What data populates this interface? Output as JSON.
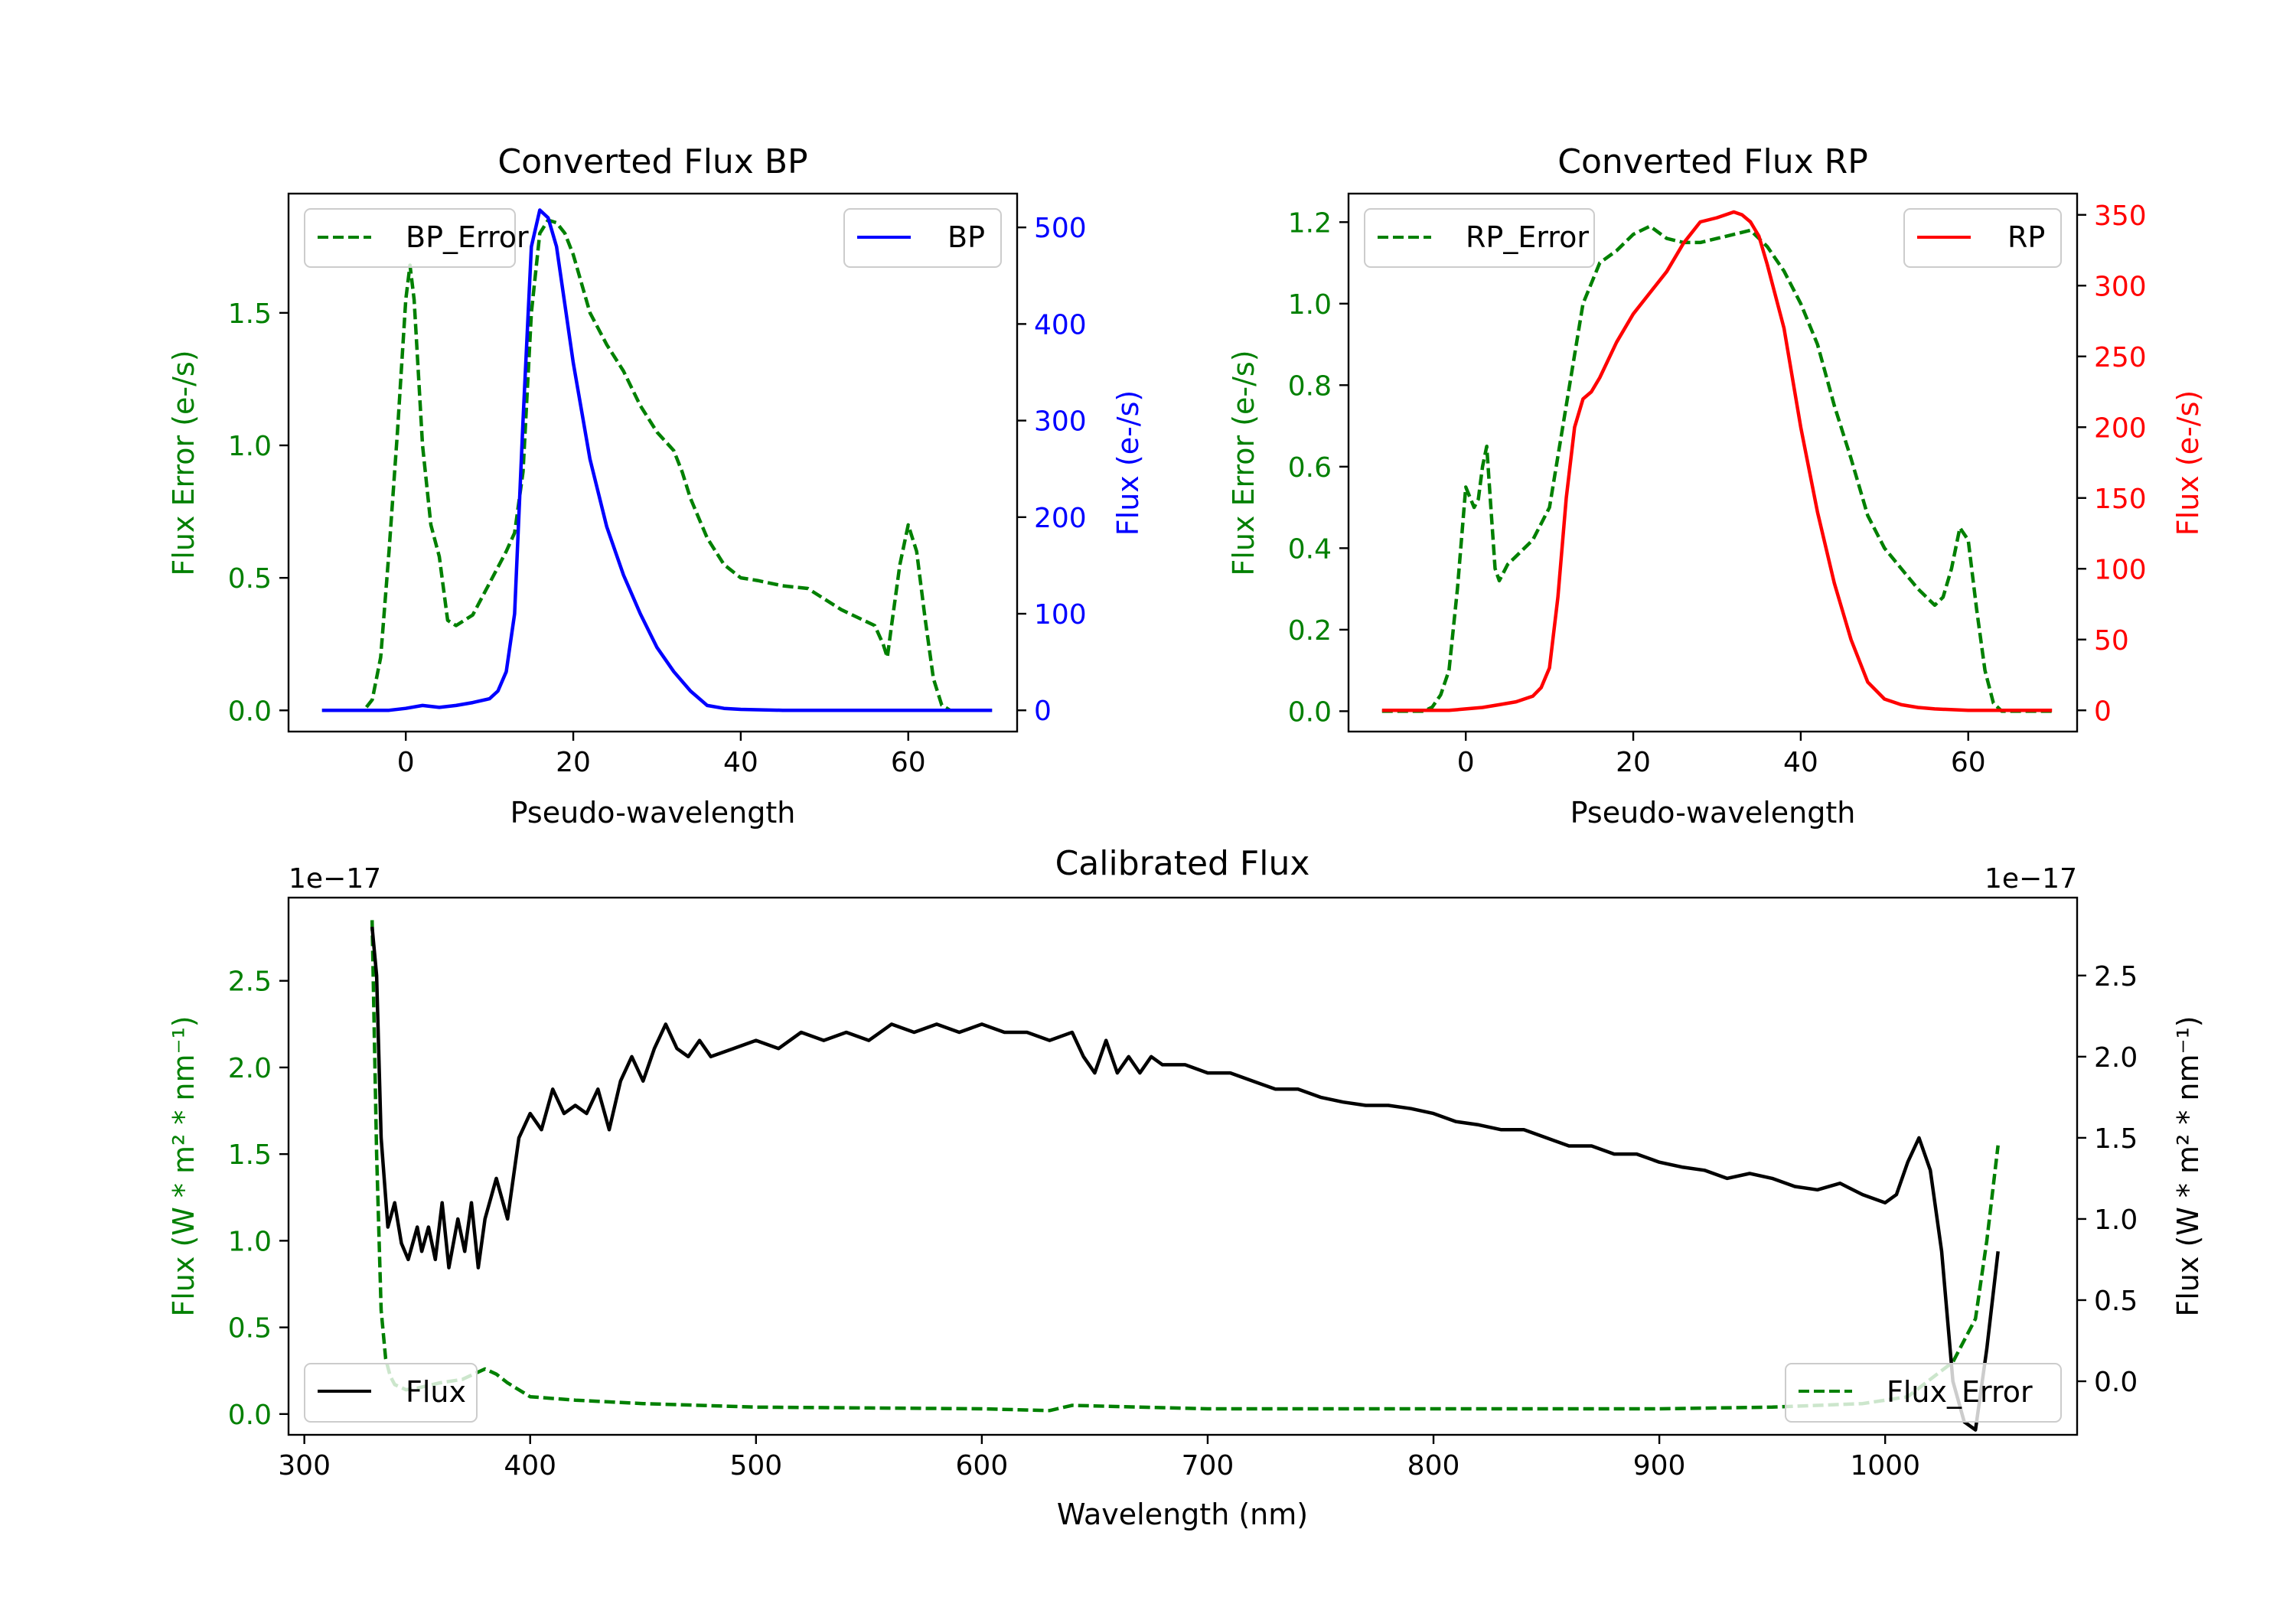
{
  "colors": {
    "green": "#008000",
    "blue": "#0000ff",
    "red": "#ff0000",
    "black": "#000000"
  },
  "chart_data": [
    {
      "id": "bp",
      "type": "line",
      "title": "Converted Flux BP",
      "xlabel": "Pseudo-wavelength",
      "xlim": [
        -14,
        73
      ],
      "xticks": [
        0,
        20,
        40,
        60
      ],
      "ylabel_left": "Flux Error (e-/s)",
      "ylim_left": [
        -0.08,
        1.95
      ],
      "yticks_left": [
        "0.0",
        "0.5",
        "1.0",
        "1.5"
      ],
      "ylabel_right": "Flux (e-/s)",
      "ylim_right": [
        -22,
        535
      ],
      "yticks_right": [
        "0",
        "100",
        "200",
        "300",
        "400",
        "500"
      ],
      "series": [
        {
          "name": "BP_Error",
          "axis": "left",
          "color": "#008000",
          "dashed": true,
          "legend": "BP_Error",
          "legend_loc": "upper left",
          "x": [
            -10,
            -5,
            -4,
            -3,
            -2,
            -1,
            0,
            0.5,
            1,
            2,
            3,
            4,
            5,
            6,
            7,
            8,
            10,
            12,
            13,
            14,
            15,
            16,
            17,
            18,
            19,
            20,
            22,
            24,
            26,
            28,
            30,
            32,
            33,
            34,
            36,
            38,
            40,
            42,
            45,
            48,
            50,
            52,
            54,
            56,
            57,
            57.5,
            58,
            59,
            60,
            61,
            62,
            63,
            64,
            65,
            66,
            70
          ],
          "y": [
            0,
            0,
            0.04,
            0.2,
            0.6,
            1.05,
            1.55,
            1.68,
            1.55,
            1.0,
            0.7,
            0.58,
            0.34,
            0.32,
            0.34,
            0.36,
            0.48,
            0.6,
            0.67,
            0.9,
            1.5,
            1.8,
            1.85,
            1.84,
            1.8,
            1.72,
            1.5,
            1.38,
            1.28,
            1.15,
            1.05,
            0.98,
            0.9,
            0.8,
            0.65,
            0.55,
            0.5,
            0.49,
            0.47,
            0.46,
            0.42,
            0.38,
            0.35,
            0.32,
            0.25,
            0.2,
            0.32,
            0.55,
            0.7,
            0.6,
            0.35,
            0.12,
            0.02,
            0,
            0,
            0
          ]
        },
        {
          "name": "BP",
          "axis": "right",
          "color": "#0000ff",
          "dashed": false,
          "legend": "BP",
          "legend_loc": "upper right",
          "x": [
            -10,
            -2,
            0,
            2,
            4,
            6,
            8,
            10,
            11,
            12,
            13,
            14,
            15,
            16,
            17,
            18,
            19,
            20,
            22,
            24,
            26,
            28,
            30,
            32,
            34,
            36,
            38,
            40,
            45,
            50,
            55,
            60,
            65,
            70
          ],
          "y": [
            0,
            0,
            2,
            5,
            3,
            5,
            8,
            12,
            20,
            40,
            100,
            300,
            480,
            518,
            510,
            480,
            420,
            360,
            260,
            190,
            140,
            100,
            65,
            40,
            20,
            5,
            2,
            1,
            0,
            0,
            0,
            0,
            0,
            0
          ]
        }
      ]
    },
    {
      "id": "rp",
      "type": "line",
      "title": "Converted Flux RP",
      "xlabel": "Pseudo-wavelength",
      "xlim": [
        -14,
        73
      ],
      "xticks": [
        0,
        20,
        40,
        60
      ],
      "ylabel_left": "Flux Error (e-/s)",
      "ylim_left": [
        -0.05,
        1.27
      ],
      "yticks_left": [
        "0.0",
        "0.2",
        "0.4",
        "0.6",
        "0.8",
        "1.0",
        "1.2"
      ],
      "ylabel_right": "Flux (e-/s)",
      "ylim_right": [
        -15,
        365
      ],
      "yticks_right": [
        "0",
        "50",
        "100",
        "150",
        "200",
        "250",
        "300",
        "350"
      ],
      "series": [
        {
          "name": "RP_Error",
          "axis": "left",
          "color": "#008000",
          "dashed": true,
          "legend": "RP_Error",
          "legend_loc": "upper left",
          "x": [
            -10,
            -5,
            -4,
            -3,
            -2,
            -1,
            0,
            1,
            1.5,
            2,
            2.5,
            3,
            3.5,
            4,
            5,
            6,
            8,
            10,
            12,
            14,
            16,
            18,
            20,
            22,
            24,
            26,
            28,
            30,
            32,
            34,
            36,
            38,
            40,
            42,
            44,
            46,
            48,
            50,
            52,
            54,
            56,
            57,
            58,
            59,
            60,
            61,
            62,
            63,
            64,
            65,
            70
          ],
          "y": [
            0,
            0,
            0.01,
            0.04,
            0.1,
            0.3,
            0.55,
            0.5,
            0.52,
            0.6,
            0.65,
            0.5,
            0.35,
            0.32,
            0.36,
            0.38,
            0.42,
            0.5,
            0.75,
            1.0,
            1.1,
            1.13,
            1.17,
            1.19,
            1.16,
            1.15,
            1.15,
            1.16,
            1.17,
            1.18,
            1.14,
            1.08,
            1.0,
            0.9,
            0.75,
            0.62,
            0.48,
            0.4,
            0.35,
            0.3,
            0.26,
            0.28,
            0.35,
            0.45,
            0.42,
            0.25,
            0.1,
            0.02,
            0,
            0,
            0
          ]
        },
        {
          "name": "RP",
          "axis": "right",
          "color": "#ff0000",
          "dashed": false,
          "legend": "RP",
          "legend_loc": "upper right",
          "x": [
            -10,
            -2,
            0,
            2,
            4,
            6,
            8,
            9,
            10,
            11,
            12,
            13,
            14,
            15,
            16,
            18,
            20,
            22,
            24,
            26,
            28,
            30,
            32,
            33,
            34,
            35,
            36,
            38,
            40,
            42,
            44,
            46,
            48,
            50,
            52,
            54,
            56,
            60,
            65,
            70
          ],
          "y": [
            0,
            0,
            1,
            2,
            4,
            6,
            10,
            16,
            30,
            80,
            150,
            200,
            220,
            225,
            235,
            260,
            280,
            295,
            310,
            330,
            345,
            348,
            352,
            350,
            345,
            335,
            315,
            270,
            200,
            140,
            90,
            50,
            20,
            8,
            4,
            2,
            1,
            0,
            0,
            0
          ]
        }
      ]
    },
    {
      "id": "cal",
      "type": "line",
      "title": "Calibrated Flux",
      "xlabel": "Wavelength (nm)",
      "xlim": [
        293,
        1085
      ],
      "xticks": [
        300,
        400,
        500,
        600,
        700,
        800,
        900,
        1000
      ],
      "ylabel_left": "Flux (W * m² * nm⁻¹)",
      "ylim_left": [
        -0.12,
        2.98
      ],
      "yticks_left": [
        "0.0",
        "0.5",
        "1.0",
        "1.5",
        "2.0",
        "2.5"
      ],
      "offset_left": "1e−17",
      "ylabel_right": "Flux (W * m² * nm⁻¹)",
      "ylim_right": [
        -0.33,
        2.98
      ],
      "yticks_right": [
        "0.0",
        "0.5",
        "1.0",
        "1.5",
        "2.0",
        "2.5"
      ],
      "offset_right": "1e−17",
      "series": [
        {
          "name": "Flux_Error",
          "axis": "left",
          "color": "#008000",
          "dashed": true,
          "legend": "Flux_Error",
          "legend_loc": "lower right",
          "x": [
            330,
            332,
            334,
            336,
            338,
            340,
            345,
            350,
            360,
            370,
            380,
            385,
            390,
            400,
            420,
            450,
            500,
            550,
            600,
            630,
            640,
            700,
            800,
            900,
            950,
            970,
            990,
            1000,
            1010,
            1020,
            1030,
            1040,
            1045,
            1050
          ],
          "y": [
            2.85,
            1.5,
            0.6,
            0.32,
            0.22,
            0.17,
            0.14,
            0.15,
            0.18,
            0.2,
            0.26,
            0.23,
            0.18,
            0.1,
            0.08,
            0.06,
            0.04,
            0.035,
            0.03,
            0.02,
            0.05,
            0.03,
            0.03,
            0.03,
            0.04,
            0.05,
            0.06,
            0.08,
            0.1,
            0.2,
            0.3,
            0.55,
            1.0,
            1.55
          ]
        },
        {
          "name": "Flux",
          "axis": "right",
          "color": "#000000",
          "dashed": false,
          "legend": "Flux",
          "legend_loc": "lower left",
          "x": [
            330,
            332,
            334,
            337,
            340,
            343,
            346,
            350,
            352,
            355,
            358,
            361,
            364,
            368,
            371,
            374,
            377,
            380,
            385,
            390,
            395,
            400,
            405,
            410,
            415,
            420,
            425,
            430,
            435,
            440,
            445,
            450,
            455,
            460,
            465,
            470,
            475,
            480,
            490,
            500,
            510,
            520,
            530,
            540,
            550,
            560,
            570,
            580,
            590,
            600,
            610,
            620,
            630,
            640,
            645,
            650,
            655,
            660,
            665,
            670,
            675,
            680,
            690,
            700,
            710,
            720,
            730,
            740,
            750,
            760,
            770,
            780,
            790,
            800,
            810,
            820,
            830,
            840,
            850,
            860,
            870,
            880,
            890,
            900,
            910,
            920,
            930,
            940,
            950,
            960,
            970,
            980,
            990,
            1000,
            1005,
            1010,
            1015,
            1020,
            1025,
            1030,
            1035,
            1040,
            1045,
            1050
          ],
          "y": [
            2.8,
            2.5,
            1.5,
            0.95,
            1.1,
            0.85,
            0.75,
            0.95,
            0.8,
            0.95,
            0.75,
            1.1,
            0.7,
            1.0,
            0.8,
            1.1,
            0.7,
            1.0,
            1.25,
            1.0,
            1.5,
            1.65,
            1.55,
            1.8,
            1.65,
            1.7,
            1.65,
            1.8,
            1.55,
            1.85,
            2.0,
            1.85,
            2.05,
            2.2,
            2.05,
            2.0,
            2.1,
            2.0,
            2.05,
            2.1,
            2.05,
            2.15,
            2.1,
            2.15,
            2.1,
            2.2,
            2.15,
            2.2,
            2.15,
            2.2,
            2.15,
            2.15,
            2.1,
            2.15,
            2.0,
            1.9,
            2.1,
            1.9,
            2.0,
            1.9,
            2.0,
            1.95,
            1.95,
            1.9,
            1.9,
            1.85,
            1.8,
            1.8,
            1.75,
            1.72,
            1.7,
            1.7,
            1.68,
            1.65,
            1.6,
            1.58,
            1.55,
            1.55,
            1.5,
            1.45,
            1.45,
            1.4,
            1.4,
            1.35,
            1.32,
            1.3,
            1.25,
            1.28,
            1.25,
            1.2,
            1.18,
            1.22,
            1.15,
            1.1,
            1.15,
            1.35,
            1.5,
            1.3,
            0.8,
            0.0,
            -0.25,
            -0.3,
            0.2,
            0.8
          ]
        }
      ]
    }
  ]
}
